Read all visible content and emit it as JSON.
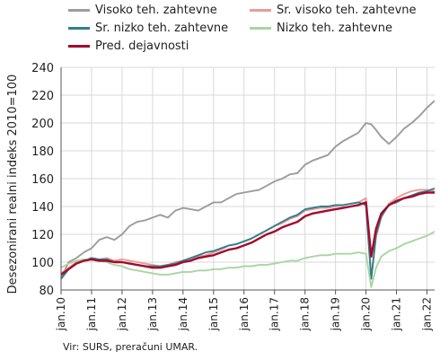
{
  "chart_data": {
    "type": "line",
    "ylabel": "Desezonirani realni indeks 2010=100",
    "ylim": [
      80,
      240
    ],
    "yticks": [
      80,
      100,
      120,
      140,
      160,
      180,
      200,
      220,
      240
    ],
    "xlim": [
      2010,
      2022.25
    ],
    "xticks": [
      "jan.10",
      "jan.11",
      "jan.12",
      "jan.13",
      "jan.14",
      "jan.15",
      "jan.16",
      "jan.17",
      "jan.18",
      "jan.19",
      "jan.20",
      "jan.21",
      "jan.22"
    ],
    "grid": true,
    "legend_position": "top",
    "source": "Vir: SURS, preračuni UMAR.",
    "series": [
      {
        "name": "Visoko teh. zahtevne",
        "color": "#9c9c9c",
        "x": [
          2010.0,
          2010.25,
          2010.5,
          2010.75,
          2011.0,
          2011.25,
          2011.5,
          2011.75,
          2012.0,
          2012.25,
          2012.5,
          2012.75,
          2013.0,
          2013.25,
          2013.5,
          2013.75,
          2014.0,
          2014.25,
          2014.5,
          2014.75,
          2015.0,
          2015.25,
          2015.5,
          2015.75,
          2016.0,
          2016.25,
          2016.5,
          2016.75,
          2017.0,
          2017.25,
          2017.5,
          2017.75,
          2018.0,
          2018.25,
          2018.5,
          2018.75,
          2019.0,
          2019.25,
          2019.5,
          2019.75,
          2020.0,
          2020.17,
          2020.33,
          2020.5,
          2020.75,
          2021.0,
          2021.25,
          2021.5,
          2021.75,
          2022.0,
          2022.25
        ],
        "y": [
          89,
          100,
          103,
          107,
          110,
          116,
          118,
          116,
          120,
          126,
          129,
          130,
          132,
          134,
          132,
          137,
          139,
          138,
          137,
          140,
          143,
          143,
          146,
          149,
          150,
          151,
          152,
          155,
          158,
          160,
          163,
          164,
          170,
          173,
          175,
          177,
          183,
          187,
          190,
          193,
          200,
          199,
          195,
          190,
          185,
          190,
          196,
          200,
          205,
          211,
          216
        ]
      },
      {
        "name": "Sr. visoko teh. zahtevne",
        "color": "#ec9a96",
        "x": [
          2010.0,
          2010.25,
          2010.5,
          2010.75,
          2011.0,
          2011.25,
          2011.5,
          2011.75,
          2012.0,
          2012.25,
          2012.5,
          2012.75,
          2013.0,
          2013.25,
          2013.5,
          2013.75,
          2014.0,
          2014.25,
          2014.5,
          2014.75,
          2015.0,
          2015.25,
          2015.5,
          2015.75,
          2016.0,
          2016.25,
          2016.5,
          2016.75,
          2017.0,
          2017.25,
          2017.5,
          2017.75,
          2018.0,
          2018.25,
          2018.5,
          2018.75,
          2019.0,
          2019.25,
          2019.5,
          2019.75,
          2020.0,
          2020.17,
          2020.33,
          2020.5,
          2020.75,
          2021.0,
          2021.25,
          2021.5,
          2021.75,
          2022.0,
          2022.25
        ],
        "y": [
          92,
          96,
          100,
          101,
          103,
          102,
          103,
          101,
          102,
          101,
          100,
          99,
          98,
          97,
          98,
          100,
          101,
          102,
          104,
          105,
          107,
          109,
          112,
          113,
          115,
          117,
          120,
          123,
          126,
          128,
          131,
          133,
          137,
          138,
          139,
          139,
          140,
          141,
          142,
          143,
          146,
          88,
          118,
          132,
          142,
          146,
          149,
          151,
          152,
          152,
          151
        ]
      },
      {
        "name": "Sr. nizko teh. zahtevne",
        "color": "#2f7f8e",
        "x": [
          2010.0,
          2010.25,
          2010.5,
          2010.75,
          2011.0,
          2011.25,
          2011.5,
          2011.75,
          2012.0,
          2012.25,
          2012.5,
          2012.75,
          2013.0,
          2013.25,
          2013.5,
          2013.75,
          2014.0,
          2014.25,
          2014.5,
          2014.75,
          2015.0,
          2015.25,
          2015.5,
          2015.75,
          2016.0,
          2016.25,
          2016.5,
          2016.75,
          2017.0,
          2017.25,
          2017.5,
          2017.75,
          2018.0,
          2018.25,
          2018.5,
          2018.75,
          2019.0,
          2019.25,
          2019.5,
          2019.75,
          2020.0,
          2020.17,
          2020.33,
          2020.5,
          2020.75,
          2021.0,
          2021.25,
          2021.5,
          2021.75,
          2022.0,
          2022.25
        ],
        "y": [
          88,
          95,
          99,
          101,
          103,
          102,
          102,
          100,
          100,
          99,
          98,
          97,
          97,
          97,
          98,
          99,
          101,
          103,
          105,
          107,
          108,
          110,
          112,
          113,
          115,
          117,
          120,
          123,
          126,
          129,
          132,
          134,
          138,
          139,
          140,
          140,
          141,
          141,
          142,
          143,
          141,
          88,
          120,
          133,
          141,
          143,
          146,
          148,
          150,
          151,
          153
        ]
      },
      {
        "name": "Nizko teh. zahtevne",
        "color": "#a9d5a2",
        "x": [
          2010.0,
          2010.25,
          2010.5,
          2010.75,
          2011.0,
          2011.25,
          2011.5,
          2011.75,
          2012.0,
          2012.25,
          2012.5,
          2012.75,
          2013.0,
          2013.25,
          2013.5,
          2013.75,
          2014.0,
          2014.25,
          2014.5,
          2014.75,
          2015.0,
          2015.25,
          2015.5,
          2015.75,
          2016.0,
          2016.25,
          2016.5,
          2016.75,
          2017.0,
          2017.25,
          2017.5,
          2017.75,
          2018.0,
          2018.25,
          2018.5,
          2018.75,
          2019.0,
          2019.25,
          2019.5,
          2019.75,
          2020.0,
          2020.17,
          2020.33,
          2020.5,
          2020.75,
          2021.0,
          2021.25,
          2021.5,
          2021.75,
          2022.0,
          2022.25
        ],
        "y": [
          96,
          99,
          101,
          102,
          102,
          101,
          100,
          98,
          97,
          95,
          94,
          93,
          92,
          91,
          91,
          92,
          93,
          93,
          94,
          94,
          95,
          95,
          96,
          96,
          97,
          97,
          98,
          98,
          99,
          100,
          101,
          101,
          103,
          104,
          105,
          105,
          106,
          106,
          106,
          107,
          106,
          82,
          96,
          104,
          108,
          110,
          113,
          115,
          117,
          119,
          122
        ]
      },
      {
        "name": "Pred. dejavnosti",
        "color": "#a30a2c",
        "x": [
          2010.0,
          2010.25,
          2010.5,
          2010.75,
          2011.0,
          2011.25,
          2011.5,
          2011.75,
          2012.0,
          2012.25,
          2012.5,
          2012.75,
          2013.0,
          2013.25,
          2013.5,
          2013.75,
          2014.0,
          2014.25,
          2014.5,
          2014.75,
          2015.0,
          2015.25,
          2015.5,
          2015.75,
          2016.0,
          2016.25,
          2016.5,
          2016.75,
          2017.0,
          2017.25,
          2017.5,
          2017.75,
          2018.0,
          2018.25,
          2018.5,
          2018.75,
          2019.0,
          2019.25,
          2019.5,
          2019.75,
          2020.0,
          2020.17,
          2020.33,
          2020.5,
          2020.75,
          2021.0,
          2021.25,
          2021.5,
          2021.75,
          2022.0,
          2022.25
        ],
        "y": [
          91,
          95,
          99,
          101,
          102,
          101,
          101,
          100,
          100,
          99,
          98,
          97,
          96,
          96,
          97,
          98,
          100,
          101,
          103,
          104,
          105,
          107,
          109,
          110,
          112,
          114,
          117,
          120,
          122,
          125,
          127,
          129,
          133,
          135,
          136,
          137,
          138,
          139,
          140,
          141,
          143,
          104,
          124,
          135,
          141,
          144,
          146,
          147,
          149,
          150,
          150
        ]
      }
    ]
  }
}
